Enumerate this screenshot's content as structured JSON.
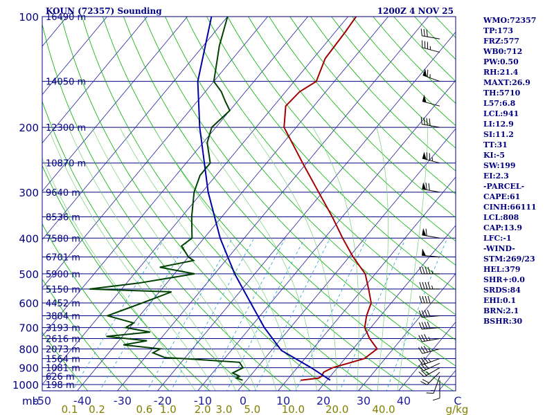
{
  "header": {
    "station": "KOUN (72357) Sounding",
    "time": "1200Z  4 NOV 25"
  },
  "stats": [
    "WMO:72357",
    "TP:173",
    "FRZ:577",
    "WB0:712",
    "PW:0.50",
    "RH:21.4",
    "MAXT:26.9",
    "TH:5710",
    "L57:6.8",
    "LCL:941",
    "LI:12.9",
    "SI:11.2",
    "TT:31",
    "KI:-5",
    "SW:199",
    "EI:2.3",
    "-PARCEL-",
    "CAPE:61",
    "CINH:66111",
    "LCL:808",
    "CAP:13.9",
    "LFC:-1",
    "-WIND-",
    "STM:269/23",
    "HEL:379",
    "SHR+:0.0",
    "SRDS:84",
    "EHI:0.1",
    "BRN:2.1",
    "BSHR:30"
  ],
  "colors": {
    "isobar": "#000080",
    "isotherm": "#2020a0",
    "dry_adiabat": "#00b000",
    "moist_adiabat": "#70d070",
    "mixing_ratio": "#20a0d0",
    "temperature": "#a00000",
    "dewpoint": "#004000",
    "parcel": "#0000a0",
    "mixing_label": "#808000",
    "wind_barb": "#000000"
  },
  "chart_data": {
    "type": "line",
    "title": "KOUN (72357) Sounding",
    "subtitle": "1200Z  4 NOV 25",
    "xlabel": "C",
    "ylabel": "mb",
    "x_range_celsius": [
      -50,
      50
    ],
    "y_range_mb": [
      1000,
      100
    ],
    "log_pressure_axis": true,
    "skewed_temperature_axis": true,
    "grid": true,
    "pressure_ticks_mb": [
      100,
      200,
      300,
      400,
      500,
      600,
      700,
      800,
      900,
      1000
    ],
    "temperature_ticks_c": [
      "-50",
      "-40",
      "-30",
      "-20",
      "-10",
      "0",
      "10",
      "20",
      "30",
      "40"
    ],
    "mixing_ratio_ticks": [
      {
        "label": "0.1",
        "value": 0.1
      },
      {
        "label": "0.2",
        "value": 0.2
      },
      {
        "label": "0.6",
        "value": 0.6
      },
      {
        "label": "1.0",
        "value": 1.0
      },
      {
        "label": "2.0",
        "value": 2.0
      },
      {
        "label": "3.0",
        "value": 3.0
      },
      {
        "label": "5.0",
        "value": 5.0
      },
      {
        "label": "10.0",
        "value": 10.0
      },
      {
        "label": "20.0",
        "value": 20.0
      },
      {
        "label": "40.0",
        "value": 40.0
      }
    ],
    "mixing_ratio_unit": "g/kg",
    "height_labels": [
      {
        "p": 100,
        "label": "16490 m"
      },
      {
        "p": 150,
        "label": "14050 m"
      },
      {
        "p": 200,
        "label": "12300 m"
      },
      {
        "p": 250,
        "label": "10870 m"
      },
      {
        "p": 300,
        "label": "9640 m"
      },
      {
        "p": 350,
        "label": "8536 m"
      },
      {
        "p": 400,
        "label": "7580 m"
      },
      {
        "p": 450,
        "label": "6701 m"
      },
      {
        "p": 500,
        "label": "5900 m"
      },
      {
        "p": 550,
        "label": "5150 m"
      },
      {
        "p": 600,
        "label": "4452 m"
      },
      {
        "p": 650,
        "label": "3804 m"
      },
      {
        "p": 700,
        "label": "3193 m"
      },
      {
        "p": 750,
        "label": "2616 m"
      },
      {
        "p": 800,
        "label": "2073 m"
      },
      {
        "p": 850,
        "label": "1564 m"
      },
      {
        "p": 900,
        "label": "1081 m"
      },
      {
        "p": 950,
        "label": "626 m"
      },
      {
        "p": 1000,
        "label": "198 m"
      }
    ],
    "series": [
      {
        "key": "temperature",
        "points": [
          [
            973,
            13.5
          ],
          [
            960,
            17.5
          ],
          [
            950,
            17.8
          ],
          [
            925,
            17.5
          ],
          [
            900,
            18.8
          ],
          [
            850,
            24.8
          ],
          [
            800,
            26.0
          ],
          [
            750,
            22.0
          ],
          [
            700,
            18.5
          ],
          [
            650,
            16.5
          ],
          [
            600,
            15.0
          ],
          [
            550,
            11.5
          ],
          [
            500,
            7.5
          ],
          [
            450,
            1.0
          ],
          [
            400,
            -5.5
          ],
          [
            350,
            -12.5
          ],
          [
            300,
            -21.0
          ],
          [
            250,
            -31.0
          ],
          [
            200,
            -43.0
          ],
          [
            175,
            -47.0
          ],
          [
            160,
            -46.5
          ],
          [
            150,
            -44.5
          ],
          [
            130,
            -47.0
          ],
          [
            110,
            -47.5
          ],
          [
            100,
            -48.0
          ]
        ]
      },
      {
        "key": "dewpoint",
        "points": [
          [
            973,
            -1.0
          ],
          [
            960,
            -3.0
          ],
          [
            950,
            -2.5
          ],
          [
            930,
            -5.0
          ],
          [
            900,
            -3.5
          ],
          [
            870,
            -5.5
          ],
          [
            850,
            -20.0
          ],
          [
            845,
            -25.0
          ],
          [
            820,
            -29.0
          ],
          [
            800,
            -28.0
          ],
          [
            780,
            -38.0
          ],
          [
            760,
            -33.0
          ],
          [
            740,
            -44.0
          ],
          [
            720,
            -34.0
          ],
          [
            700,
            -41.0
          ],
          [
            680,
            -40.0
          ],
          [
            650,
            -48.0
          ],
          [
            600,
            -42.0
          ],
          [
            560,
            -37.0
          ],
          [
            550,
            -58.0
          ],
          [
            530,
            -47.0
          ],
          [
            500,
            -35.0
          ],
          [
            480,
            -45.0
          ],
          [
            460,
            -38.0
          ],
          [
            450,
            -40.0
          ],
          [
            420,
            -44.0
          ],
          [
            400,
            -43.0
          ],
          [
            350,
            -47.5
          ],
          [
            300,
            -52.0
          ],
          [
            270,
            -54.0
          ],
          [
            250,
            -54.0
          ],
          [
            220,
            -59.0
          ],
          [
            200,
            -61.0
          ],
          [
            180,
            -60.0
          ],
          [
            170,
            -63.0
          ],
          [
            160,
            -66.0
          ],
          [
            150,
            -70.0
          ],
          [
            120,
            -76.0
          ],
          [
            100,
            -80.0
          ]
        ]
      },
      {
        "key": "parcel",
        "points": [
          [
            973,
            20.8
          ],
          [
            900,
            13.5
          ],
          [
            808,
            2.5
          ],
          [
            700,
            -6.5
          ],
          [
            600,
            -15.0
          ],
          [
            500,
            -25.0
          ],
          [
            400,
            -36.0
          ],
          [
            300,
            -48.5
          ],
          [
            200,
            -64.0
          ],
          [
            150,
            -74.0
          ],
          [
            100,
            -84.0
          ]
        ]
      }
    ],
    "wind_barbs": [
      {
        "p": 973,
        "dir": 180,
        "kt": 10
      },
      {
        "p": 950,
        "dir": 200,
        "kt": 15
      },
      {
        "p": 925,
        "dir": 225,
        "kt": 20
      },
      {
        "p": 900,
        "dir": 240,
        "kt": 25
      },
      {
        "p": 875,
        "dir": 245,
        "kt": 30
      },
      {
        "p": 850,
        "dir": 250,
        "kt": 35
      },
      {
        "p": 800,
        "dir": 255,
        "kt": 35
      },
      {
        "p": 750,
        "dir": 260,
        "kt": 35
      },
      {
        "p": 700,
        "dir": 265,
        "kt": 40
      },
      {
        "p": 650,
        "dir": 265,
        "kt": 40
      },
      {
        "p": 600,
        "dir": 270,
        "kt": 40
      },
      {
        "p": 550,
        "dir": 270,
        "kt": 45
      },
      {
        "p": 500,
        "dir": 270,
        "kt": 45
      },
      {
        "p": 450,
        "dir": 275,
        "kt": 50
      },
      {
        "p": 400,
        "dir": 280,
        "kt": 60
      },
      {
        "p": 300,
        "dir": 280,
        "kt": 70
      },
      {
        "p": 250,
        "dir": 285,
        "kt": 75
      },
      {
        "p": 200,
        "dir": 280,
        "kt": 40
      },
      {
        "p": 175,
        "dir": 285,
        "kt": 50
      },
      {
        "p": 150,
        "dir": 290,
        "kt": 65
      },
      {
        "p": 125,
        "dir": 285,
        "kt": 35
      },
      {
        "p": 115,
        "dir": 280,
        "kt": 30
      }
    ]
  }
}
